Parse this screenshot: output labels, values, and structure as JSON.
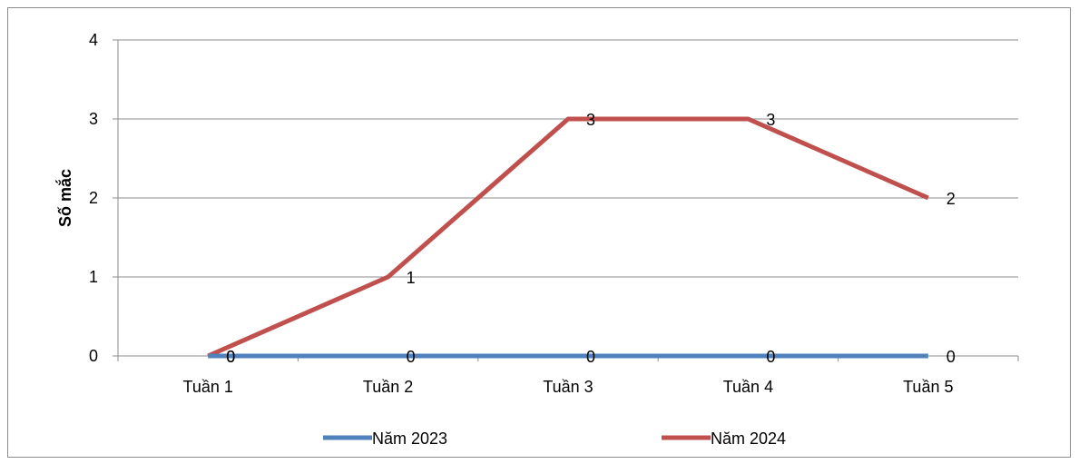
{
  "chart_data": {
    "type": "line",
    "categories": [
      "Tuần 1",
      "Tuần 2",
      "Tuần 3",
      "Tuần 4",
      "Tuần 5"
    ],
    "ylabel": "Số mắc",
    "ylim": [
      0,
      4
    ],
    "yticks": [
      0,
      1,
      2,
      3,
      4
    ],
    "grid": true,
    "legend_position": "bottom",
    "series": [
      {
        "name": "Năm 2023",
        "color": "#4f81bd",
        "values": [
          0,
          0,
          0,
          0,
          0
        ]
      },
      {
        "name": "Năm 2024",
        "color": "#c0504d",
        "values": [
          0,
          1,
          3,
          3,
          2
        ]
      }
    ]
  }
}
